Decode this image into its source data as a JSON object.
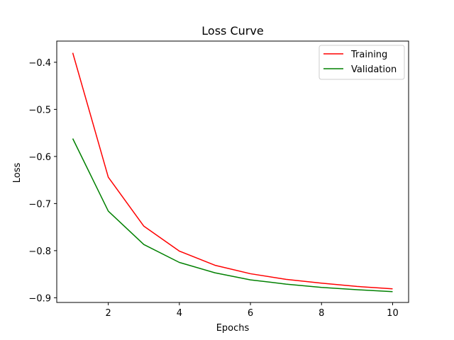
{
  "chart_data": {
    "type": "line",
    "title": "Loss Curve",
    "xlabel": "Epochs",
    "ylabel": "Loss",
    "x": [
      1,
      2,
      3,
      4,
      5,
      6,
      7,
      8,
      9,
      10
    ],
    "xlim": [
      0.55,
      10.45
    ],
    "ylim": [
      -0.91,
      -0.355
    ],
    "xticks": [
      2,
      4,
      6,
      8,
      10
    ],
    "yticks": [
      -0.4,
      -0.5,
      -0.6,
      -0.7,
      -0.8,
      -0.9
    ],
    "xtick_labels": [
      "2",
      "4",
      "6",
      "8",
      "10"
    ],
    "ytick_labels": [
      "−0.4",
      "−0.5",
      "−0.6",
      "−0.7",
      "−0.8",
      "−0.9"
    ],
    "grid": false,
    "legend_position": "top-right",
    "series": [
      {
        "name": "Training",
        "color": "#ff0000",
        "values": [
          -0.38,
          -0.644,
          -0.748,
          -0.801,
          -0.831,
          -0.849,
          -0.861,
          -0.869,
          -0.876,
          -0.881
        ]
      },
      {
        "name": "Validation",
        "color": "#008000",
        "values": [
          -0.562,
          -0.716,
          -0.787,
          -0.825,
          -0.847,
          -0.862,
          -0.871,
          -0.878,
          -0.883,
          -0.887
        ]
      }
    ]
  }
}
